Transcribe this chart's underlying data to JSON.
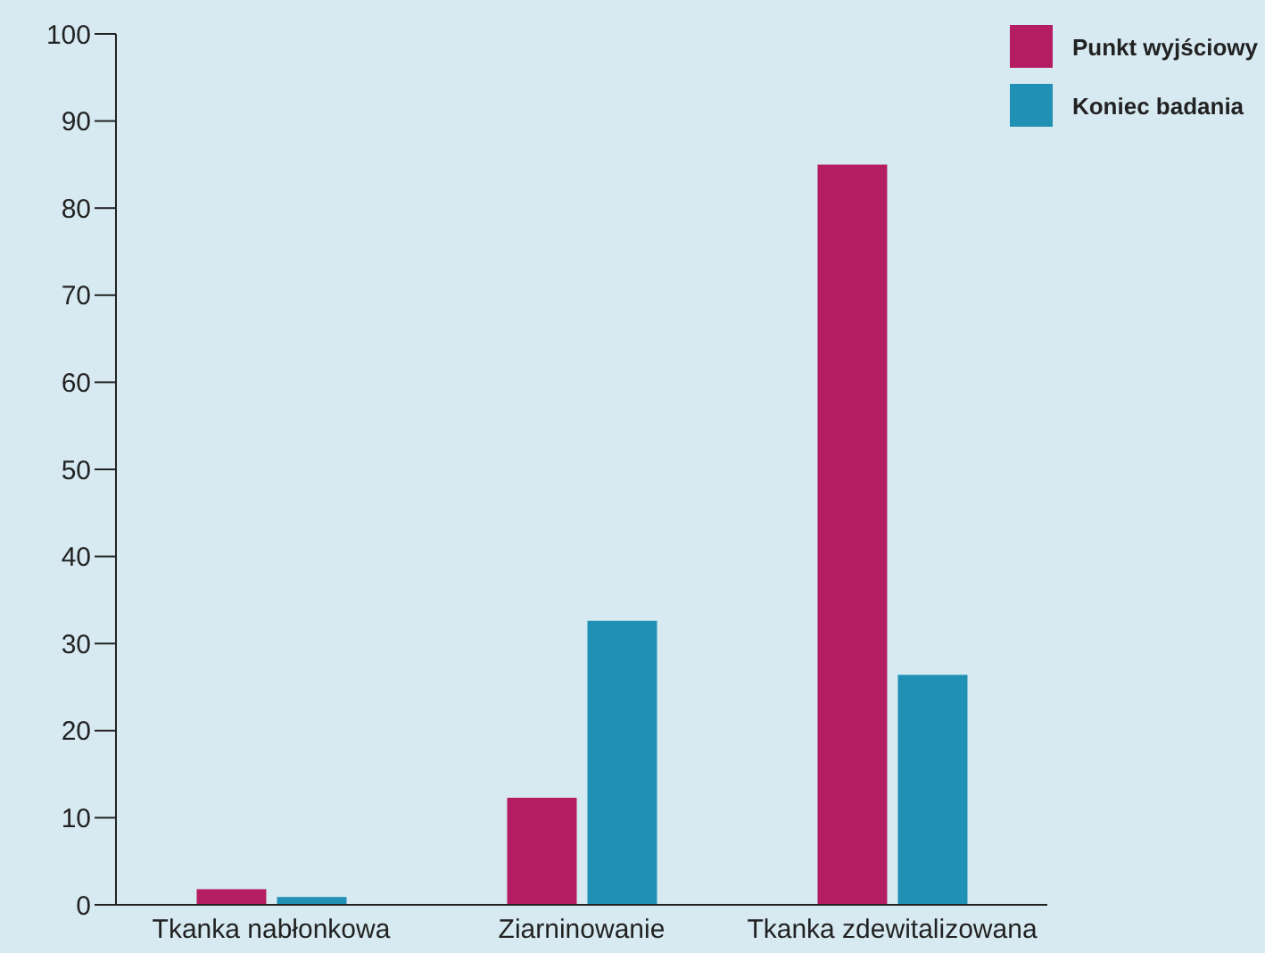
{
  "chart_data": {
    "type": "bar",
    "categories": [
      "Tkanka nabłonkowa",
      "Ziarninowanie",
      "Tkanka zdewitalizowana"
    ],
    "series": [
      {
        "name": "Punkt wyjściowy",
        "color": "#b51d63",
        "values": [
          1.8,
          12.3,
          85
        ]
      },
      {
        "name": "Koniec badania",
        "color": "#2190b5",
        "values": [
          0.9,
          32.6,
          26.4
        ]
      }
    ],
    "ylim": [
      0,
      100
    ],
    "yticks": [
      0,
      10,
      20,
      30,
      40,
      50,
      60,
      70,
      80,
      90,
      100
    ],
    "grid": false,
    "legend": "top right"
  }
}
